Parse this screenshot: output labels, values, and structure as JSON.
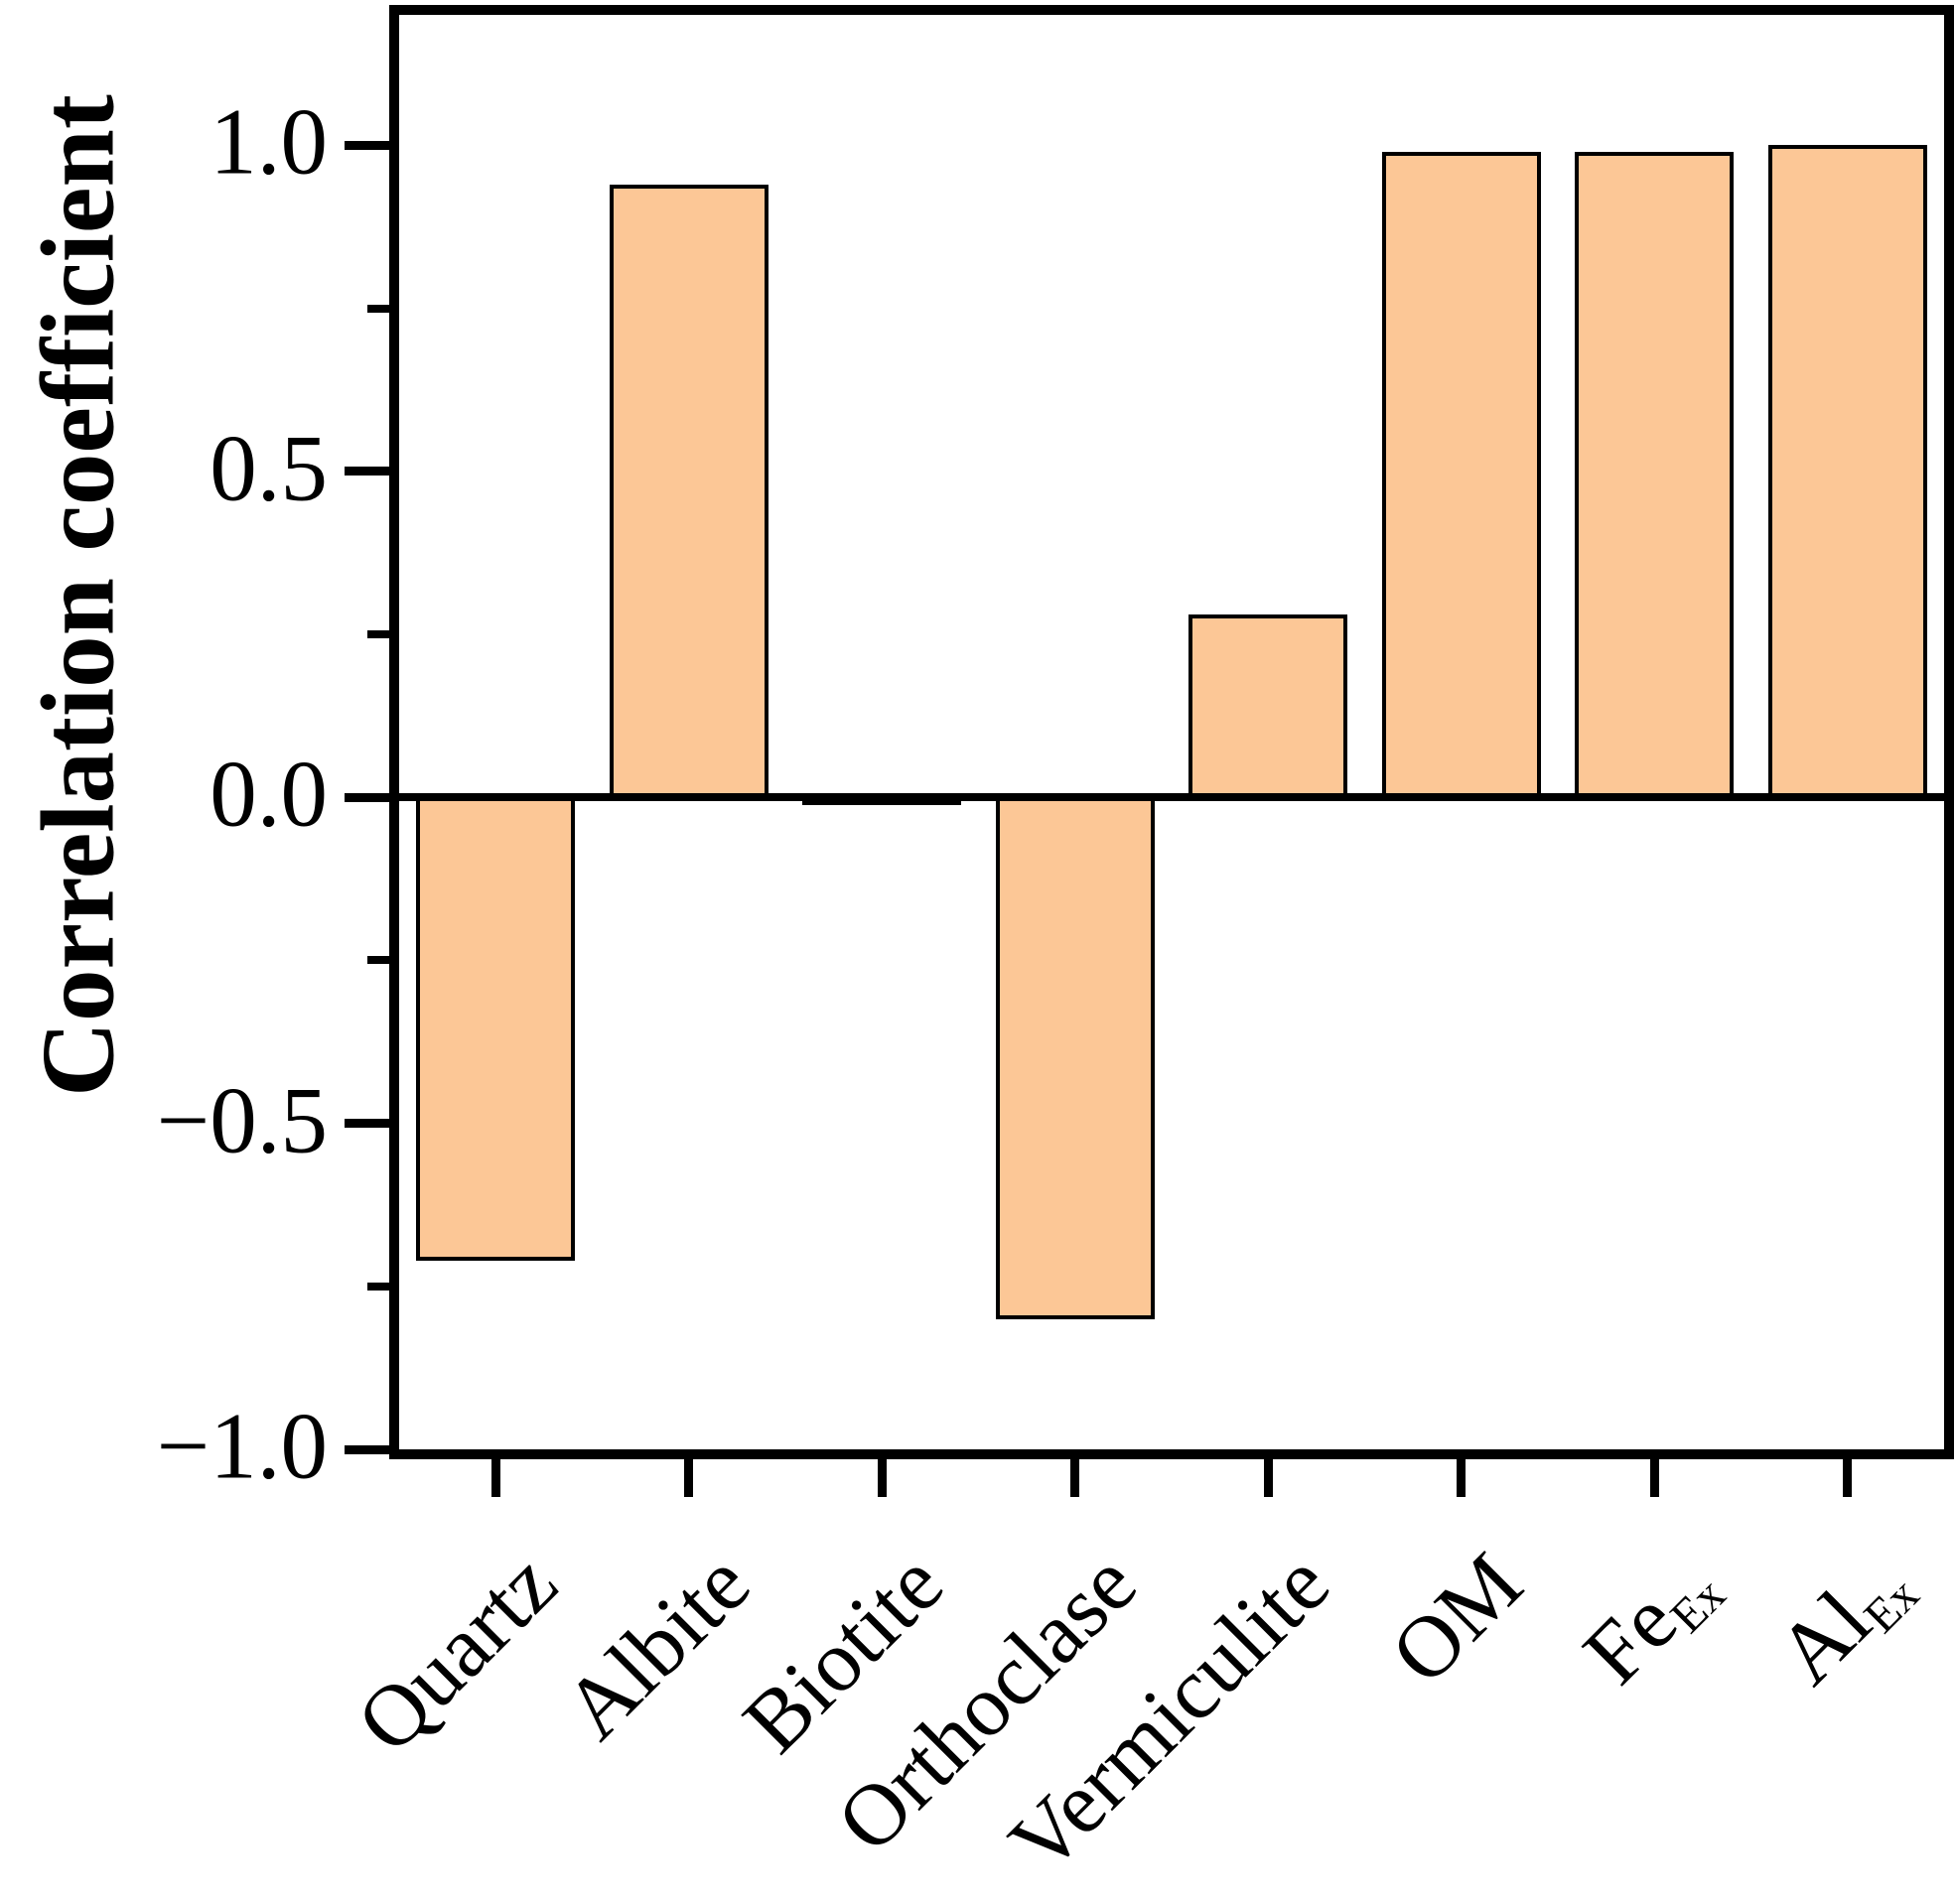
{
  "chart_data": {
    "type": "bar",
    "title": "",
    "ylabel": "Correlation coefficient",
    "xlabel": "",
    "categories": [
      {
        "label": "Quartz",
        "sub": ""
      },
      {
        "label": "Albite",
        "sub": ""
      },
      {
        "label": "Biotite",
        "sub": ""
      },
      {
        "label": "Orthoclase",
        "sub": ""
      },
      {
        "label": "Vermiculite",
        "sub": ""
      },
      {
        "label": "OM",
        "sub": ""
      },
      {
        "label": "Fe",
        "sub": "Ex"
      },
      {
        "label": "Al",
        "sub": "Ex"
      }
    ],
    "values": [
      -0.71,
      0.94,
      -0.01,
      -0.8,
      0.28,
      0.99,
      0.99,
      1.0
    ],
    "yticks": [
      1.0,
      0.5,
      0.0,
      -0.5,
      -1.0
    ],
    "ytick_labels": [
      "1.0",
      "0.5",
      "0.0",
      "−0.5",
      "−1.0"
    ],
    "minor_tick_step": 0.25,
    "ylim": [
      -1.0,
      1.2
    ],
    "bar_fill": "#FCC796",
    "bar_edge": "#000000",
    "axis_color": "#000000",
    "background": "#FFFFFF",
    "grid": false,
    "legend": null,
    "zero_line": true,
    "x_label_rotation_deg": 45
  }
}
